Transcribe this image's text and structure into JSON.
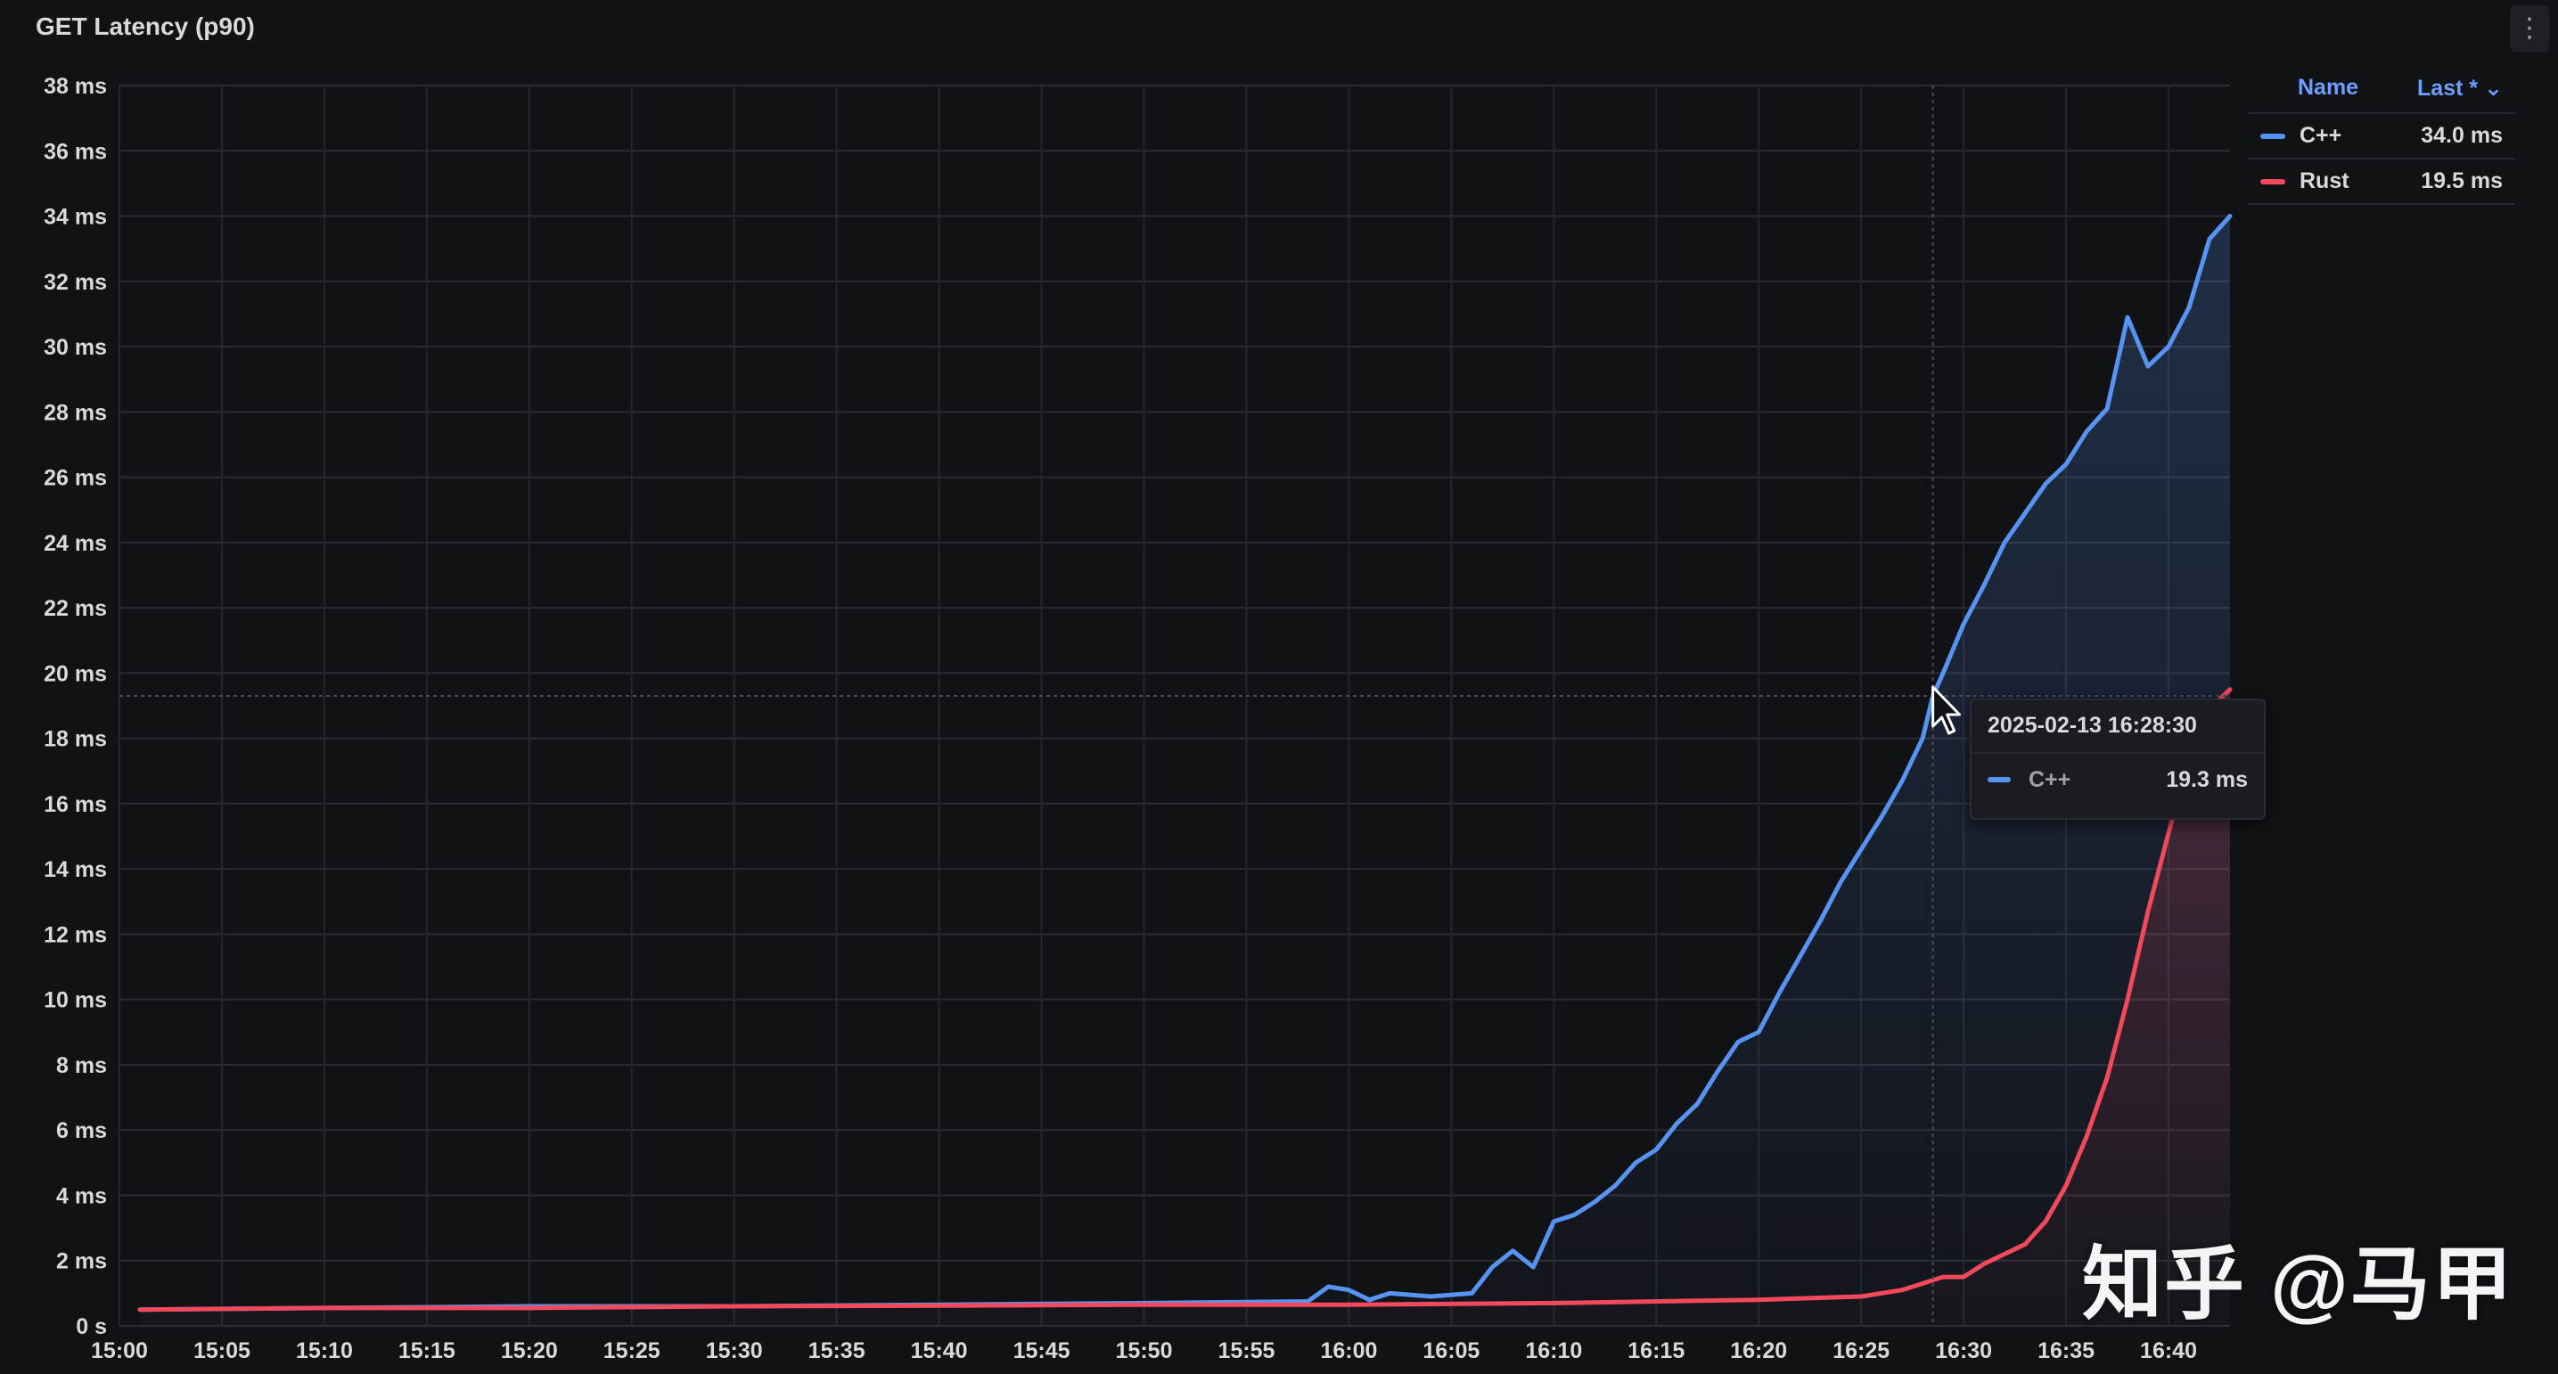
{
  "panel": {
    "title": "GET Latency (p90)",
    "menu_icon": "vertical-dots-icon",
    "menu_glyph": "⋮"
  },
  "legend": {
    "header_name": "Name",
    "header_last": "Last * ⌄",
    "items": [
      {
        "name": "C++",
        "last": "34.0 ms",
        "color": "#5794f2"
      },
      {
        "name": "Rust",
        "last": "19.5 ms",
        "color": "#f2495c"
      }
    ]
  },
  "tooltip": {
    "time": "2025-02-13 16:28:30",
    "series": "C++",
    "value": "19.3 ms",
    "color": "#5794f2"
  },
  "watermark": "知乎 @马甲",
  "chart_data": {
    "type": "line",
    "title": "GET Latency (p90)",
    "xlabel": "",
    "ylabel": "",
    "x_unit": "time (HH:MM) on 2025-02-13",
    "xlim": [
      "15:00",
      "16:43"
    ],
    "ylim": [
      0,
      38
    ],
    "y_unit": "ms",
    "yticks": [
      "0 s",
      "2 ms",
      "4 ms",
      "6 ms",
      "8 ms",
      "10 ms",
      "12 ms",
      "14 ms",
      "16 ms",
      "18 ms",
      "20 ms",
      "22 ms",
      "24 ms",
      "26 ms",
      "28 ms",
      "30 ms",
      "32 ms",
      "34 ms",
      "36 ms",
      "38 ms"
    ],
    "xticks": [
      "15:00",
      "15:05",
      "15:10",
      "15:15",
      "15:20",
      "15:25",
      "15:30",
      "15:35",
      "15:40",
      "15:45",
      "15:50",
      "15:55",
      "16:00",
      "16:05",
      "16:10",
      "16:15",
      "16:20",
      "16:25",
      "16:30",
      "16:35",
      "16:40"
    ],
    "grid": true,
    "legend_position": "top-right",
    "cursor_time": "16:28:30",
    "series": [
      {
        "name": "C++",
        "color": "#5794f2",
        "points": [
          [
            "15:01",
            0.5
          ],
          [
            "15:10",
            0.55
          ],
          [
            "15:20",
            0.6
          ],
          [
            "15:30",
            0.6
          ],
          [
            "15:40",
            0.65
          ],
          [
            "15:50",
            0.7
          ],
          [
            "15:58",
            0.75
          ],
          [
            "15:59",
            1.2
          ],
          [
            "16:00",
            1.1
          ],
          [
            "16:01",
            0.8
          ],
          [
            "16:02",
            1.0
          ],
          [
            "16:04",
            0.9
          ],
          [
            "16:06",
            1.0
          ],
          [
            "16:07",
            1.8
          ],
          [
            "16:08",
            2.3
          ],
          [
            "16:09",
            1.8
          ],
          [
            "16:10",
            3.2
          ],
          [
            "16:11",
            3.4
          ],
          [
            "16:12",
            3.8
          ],
          [
            "16:13",
            4.3
          ],
          [
            "16:14",
            5.0
          ],
          [
            "16:15",
            5.4
          ],
          [
            "16:16",
            6.2
          ],
          [
            "16:17",
            6.8
          ],
          [
            "16:18",
            7.8
          ],
          [
            "16:19",
            8.7
          ],
          [
            "16:20",
            9.0
          ],
          [
            "16:21",
            10.2
          ],
          [
            "16:22",
            11.3
          ],
          [
            "16:23",
            12.4
          ],
          [
            "16:24",
            13.6
          ],
          [
            "16:25",
            14.6
          ],
          [
            "16:26",
            15.6
          ],
          [
            "16:27",
            16.7
          ],
          [
            "16:28",
            18.0
          ],
          [
            "16:28:30",
            19.3
          ],
          [
            "16:29",
            20.0
          ],
          [
            "16:30",
            21.5
          ],
          [
            "16:31",
            22.7
          ],
          [
            "16:32",
            24.0
          ],
          [
            "16:33",
            24.9
          ],
          [
            "16:34",
            25.8
          ],
          [
            "16:35",
            26.4
          ],
          [
            "16:36",
            27.4
          ],
          [
            "16:37",
            28.1
          ],
          [
            "16:38",
            30.9
          ],
          [
            "16:39",
            29.4
          ],
          [
            "16:40",
            30.0
          ],
          [
            "16:41",
            31.2
          ],
          [
            "16:42",
            33.3
          ],
          [
            "16:43",
            34.0
          ]
        ]
      },
      {
        "name": "Rust",
        "color": "#f2495c",
        "points": [
          [
            "15:01",
            0.5
          ],
          [
            "15:10",
            0.55
          ],
          [
            "15:20",
            0.55
          ],
          [
            "15:30",
            0.6
          ],
          [
            "15:40",
            0.62
          ],
          [
            "15:50",
            0.65
          ],
          [
            "16:00",
            0.65
          ],
          [
            "16:10",
            0.7
          ],
          [
            "16:20",
            0.8
          ],
          [
            "16:25",
            0.9
          ],
          [
            "16:27",
            1.1
          ],
          [
            "16:29",
            1.5
          ],
          [
            "16:30",
            1.5
          ],
          [
            "16:31",
            1.9
          ],
          [
            "16:32",
            2.2
          ],
          [
            "16:33",
            2.5
          ],
          [
            "16:34",
            3.2
          ],
          [
            "16:35",
            4.3
          ],
          [
            "16:36",
            5.8
          ],
          [
            "16:37",
            7.6
          ],
          [
            "16:38",
            10.0
          ],
          [
            "16:39",
            12.7
          ],
          [
            "16:40",
            15.1
          ],
          [
            "16:41",
            17.3
          ],
          [
            "16:42",
            18.9
          ],
          [
            "16:43",
            19.5
          ]
        ]
      }
    ]
  }
}
